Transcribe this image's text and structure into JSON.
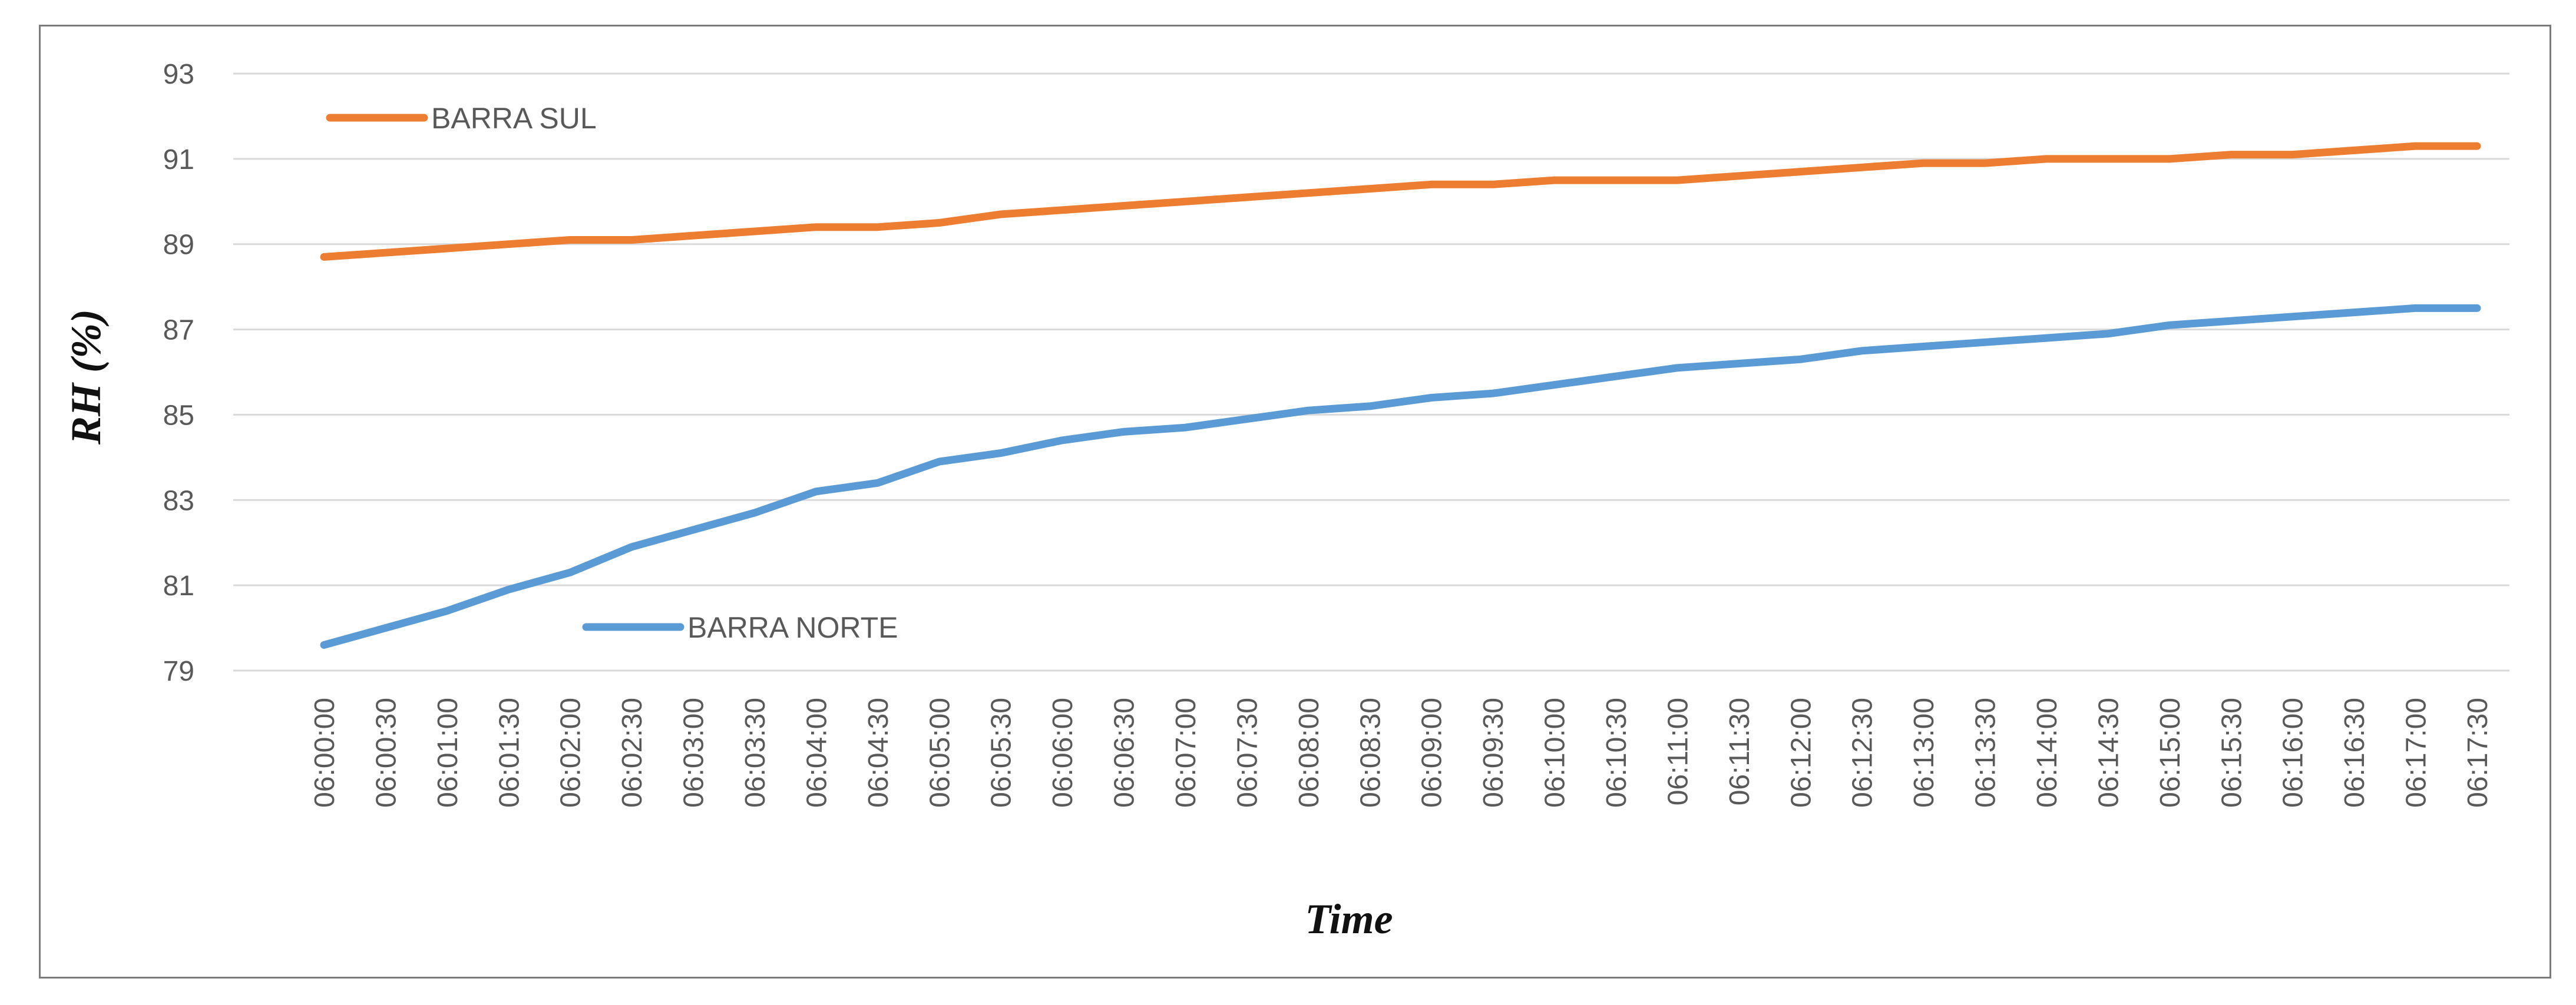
{
  "chart_data": {
    "type": "line",
    "title": "",
    "xlabel": "Time",
    "ylabel": "RH (%)",
    "ylim": [
      79,
      93
    ],
    "yticks": [
      79,
      81,
      83,
      85,
      87,
      89,
      91,
      93
    ],
    "grid": "horizontal",
    "legend": "inline",
    "x": [
      "06:00:00",
      "06:00:30",
      "06:01:00",
      "06:01:30",
      "06:02:00",
      "06:02:30",
      "06:03:00",
      "06:03:30",
      "06:04:00",
      "06:04:30",
      "06:05:00",
      "06:05:30",
      "06:06:00",
      "06:06:30",
      "06:07:00",
      "06:07:30",
      "06:08:00",
      "06:08:30",
      "06:09:00",
      "06:09:30",
      "06:10:00",
      "06:10:30",
      "06:11:00",
      "06:11:30",
      "06:12:00",
      "06:12:30",
      "06:13:00",
      "06:13:30",
      "06:14:00",
      "06:14:30",
      "06:15:00",
      "06:15:30",
      "06:16:00",
      "06:16:30",
      "06:17:00",
      "06:17:30"
    ],
    "series": [
      {
        "name": "BARRA SUL",
        "color": "#ED7D31",
        "values": [
          88.7,
          88.8,
          88.9,
          89.0,
          89.1,
          89.1,
          89.2,
          89.3,
          89.4,
          89.4,
          89.5,
          89.7,
          89.8,
          89.9,
          90.0,
          90.1,
          90.2,
          90.3,
          90.4,
          90.4,
          90.5,
          90.5,
          90.5,
          90.6,
          90.7,
          90.8,
          90.9,
          90.9,
          91.0,
          91.0,
          91.0,
          91.1,
          91.1,
          91.2,
          91.3,
          91.3
        ]
      },
      {
        "name": "BARRA NORTE",
        "color": "#5B9BD5",
        "values": [
          79.6,
          80.0,
          80.4,
          80.9,
          81.3,
          81.9,
          82.3,
          82.7,
          83.2,
          83.4,
          83.9,
          84.1,
          84.4,
          84.6,
          84.7,
          84.9,
          85.1,
          85.2,
          85.4,
          85.5,
          85.7,
          85.9,
          86.1,
          86.2,
          86.3,
          86.5,
          86.6,
          86.7,
          86.8,
          86.9,
          87.1,
          87.2,
          87.3,
          87.4,
          87.5,
          87.5
        ]
      }
    ]
  }
}
